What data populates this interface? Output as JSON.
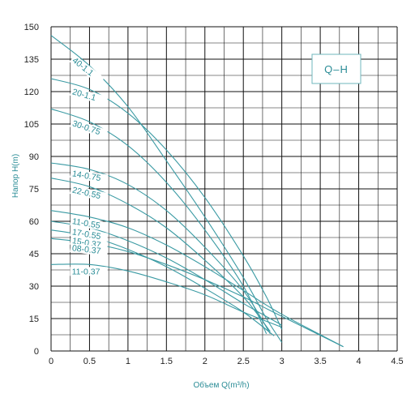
{
  "chart_data": {
    "type": "line",
    "legend_label": "Q–H",
    "xlabel": "Объем Q(m³/h)",
    "ylabel": "Напор H(m)",
    "xlim": [
      0,
      4.5
    ],
    "ylim": [
      0,
      150
    ],
    "x_ticks": [
      "0",
      "0.5",
      "1",
      "1.5",
      "2",
      "2.5",
      "3",
      "3.5",
      "4",
      "4.5"
    ],
    "y_ticks": [
      "0",
      "15",
      "30",
      "45",
      "60",
      "75",
      "90",
      "105",
      "120",
      "135",
      "150"
    ],
    "grid": true,
    "colors": {
      "curve": "#3a9aa3",
      "label": "#2a8c96",
      "grid": "#111111",
      "axis_title": "#2a8c96"
    },
    "series": [
      {
        "name": "40-1.1",
        "x": [
          0,
          0.5,
          1.0,
          1.5,
          2.0,
          2.5,
          2.8,
          3.0
        ],
        "y": [
          146,
          132,
          113,
          88,
          62,
          34,
          15,
          4
        ]
      },
      {
        "name": "20-1.1",
        "x": [
          0,
          0.5,
          1.0,
          1.5,
          2.0,
          2.5,
          2.8,
          3.0
        ],
        "y": [
          126,
          121,
          110,
          93,
          71,
          44,
          25,
          10
        ]
      },
      {
        "name": "30-0.75",
        "x": [
          0,
          0.5,
          1.0,
          1.5,
          2.0,
          2.5,
          2.8
        ],
        "y": [
          112,
          106,
          95,
          78,
          56,
          30,
          8
        ]
      },
      {
        "name": "14-0.75",
        "x": [
          0,
          0.5,
          1.0,
          1.5,
          2.0,
          2.5,
          2.85
        ],
        "y": [
          87,
          84,
          77,
          65,
          48,
          28,
          8
        ]
      },
      {
        "name": "22-0.55",
        "x": [
          0,
          0.5,
          1.0,
          1.5,
          2.0,
          2.5,
          2.85
        ],
        "y": [
          80,
          76,
          68,
          57,
          42,
          25,
          9
        ]
      },
      {
        "name": "11-0.55",
        "x": [
          0,
          0.5,
          1.0,
          1.5,
          2.0,
          2.5,
          3.0,
          3.8
        ],
        "y": [
          65,
          62,
          57,
          49,
          39,
          28,
          17,
          2
        ]
      },
      {
        "name": "17-0.55",
        "x": [
          0,
          0.5,
          1.0,
          1.5,
          2.0,
          2.5,
          3.0
        ],
        "y": [
          60,
          57,
          51,
          43,
          33,
          22,
          12
        ]
      },
      {
        "name": "15-0.37",
        "x": [
          0,
          0.5,
          1.0,
          1.5,
          2.0,
          2.5,
          2.9
        ],
        "y": [
          56,
          53,
          47,
          39,
          29,
          18,
          7
        ]
      },
      {
        "name": "08-0.37",
        "x": [
          0,
          0.5,
          1.0,
          1.5,
          2.0,
          2.5,
          3.0,
          3.8
        ],
        "y": [
          52,
          50,
          46,
          40,
          33,
          25,
          16,
          2
        ]
      },
      {
        "name": "11-0.37",
        "x": [
          0,
          0.5,
          1.0,
          1.5,
          2.0,
          2.5,
          3.0
        ],
        "y": [
          40,
          40,
          37,
          32,
          26,
          18,
          11
        ]
      }
    ]
  }
}
